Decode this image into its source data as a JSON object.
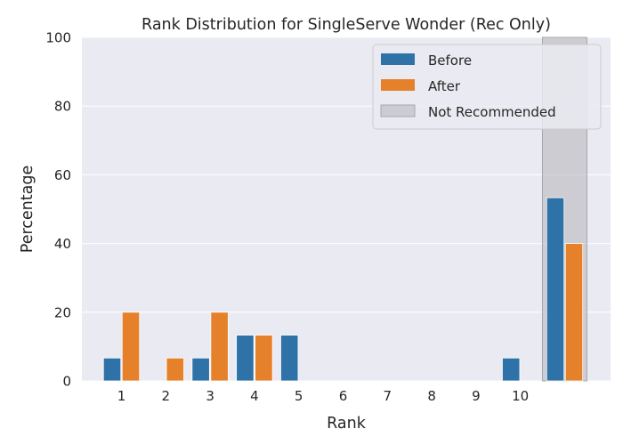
{
  "chart_data": {
    "type": "bar",
    "title": "Rank Distribution for SingleServe Wonder (Rec Only)",
    "xlabel": "Rank",
    "ylabel": "Percentage",
    "ylim": [
      0,
      100
    ],
    "yticks": [
      0,
      20,
      40,
      60,
      80,
      100
    ],
    "categories": [
      "1",
      "2",
      "3",
      "4",
      "5",
      "6",
      "7",
      "8",
      "9",
      "10",
      ""
    ],
    "series": [
      {
        "name": "Before",
        "color": "#2f72a8",
        "values": [
          6.67,
          0,
          6.67,
          13.33,
          13.33,
          0,
          0,
          0,
          0,
          6.67,
          53.33
        ]
      },
      {
        "name": "After",
        "color": "#e5812a",
        "values": [
          20,
          6.67,
          20,
          13.33,
          0,
          0,
          0,
          0,
          0,
          0,
          40
        ]
      }
    ],
    "shaded_region": {
      "name": "Not Recommended",
      "category_index": 10,
      "color": "#b3b3b8"
    },
    "grid": true,
    "background": "#eaeaf2",
    "legend_position": "top-right"
  }
}
